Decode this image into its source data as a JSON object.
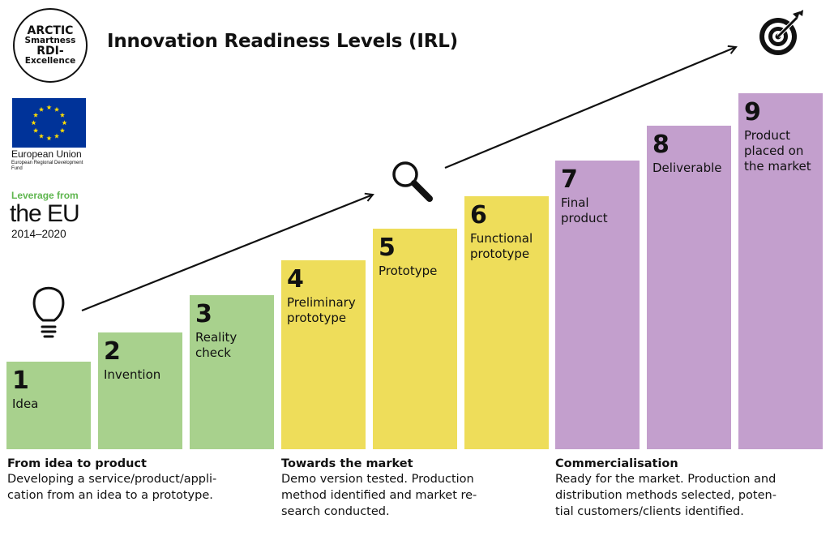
{
  "header": {
    "logo_lines": [
      "ARCTIC",
      "Smartness",
      "RDI-",
      "Excellence"
    ],
    "title": "Innovation Readiness Levels (IRL)"
  },
  "sponsors": {
    "eu_name": "European Union",
    "eu_fund": "European Regional Development Fund",
    "leverage_label": "Leverage from",
    "leverage_theeu": "the EU",
    "leverage_years": "2014–2020",
    "eu_flag_color": "#003399",
    "eu_star_color": "#ffdd00"
  },
  "colors": {
    "green": "#a8d18d",
    "yellow": "#eedd5a",
    "purple": "#c39fcd",
    "leverage_green": "#5fb64f"
  },
  "levels": [
    {
      "number": "1",
      "label": [
        "Idea"
      ],
      "phase": "green"
    },
    {
      "number": "2",
      "label": [
        "Invention"
      ],
      "phase": "green"
    },
    {
      "number": "3",
      "label": [
        "Reality",
        "check"
      ],
      "phase": "green"
    },
    {
      "number": "4",
      "label": [
        "Preliminary",
        "prototype"
      ],
      "phase": "yellow"
    },
    {
      "number": "5",
      "label": [
        "Prototype"
      ],
      "phase": "yellow"
    },
    {
      "number": "6",
      "label": [
        "Functional",
        "prototype"
      ],
      "phase": "yellow"
    },
    {
      "number": "7",
      "label": [
        "Final",
        "product"
      ],
      "phase": "purple"
    },
    {
      "number": "8",
      "label": [
        "Deliverable"
      ],
      "phase": "purple"
    },
    {
      "number": "9",
      "label": [
        "Product",
        "placed on",
        "the market"
      ],
      "phase": "purple"
    }
  ],
  "phases": [
    {
      "title": "From idea to product",
      "desc": [
        "Developing a service/product/appli-",
        "cation from an idea to a prototype."
      ]
    },
    {
      "title": "Towards the market",
      "desc": [
        "Demo version tested. Production",
        "method identified and market re-",
        "search conducted."
      ]
    },
    {
      "title": "Commercialisation",
      "desc": [
        "Ready for the market. Production and",
        "distribution methods selected, poten-",
        "tial customers/clients identified."
      ]
    }
  ],
  "icons": {
    "stage1": "lightbulb-icon",
    "stage2": "magnifier-icon",
    "stage3": "target-icon"
  }
}
